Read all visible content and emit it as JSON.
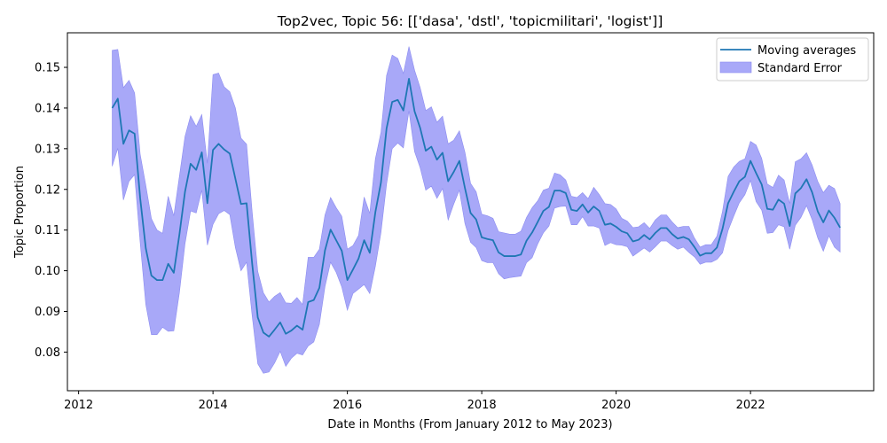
{
  "chart_data": {
    "type": "line",
    "title": "Top2vec, Topic 56: [['dasa', 'dstl', 'topicmilitari', 'logist']]",
    "xlabel": "Date in Months (From January 2012 to May 2023)",
    "ylabel": "Topic Proportion",
    "xlim": [
      "2011-11-01",
      "2023-11-01"
    ],
    "ylim": [
      0.0705,
      0.1585
    ],
    "x_ticks": [
      "2012",
      "2014",
      "2016",
      "2018",
      "2020",
      "2022"
    ],
    "y_ticks": [
      "0.08",
      "0.09",
      "0.10",
      "0.11",
      "0.12",
      "0.13",
      "0.14",
      "0.15"
    ],
    "grid": false,
    "legend_position": "top-right",
    "colors": {
      "line": "#1f77b4",
      "band": "#a8a8f8",
      "band_edge": "#8c8cf0"
    },
    "series": [
      {
        "name": "Moving averages",
        "x": [
          "2012-07",
          "2012-08",
          "2012-09",
          "2012-10",
          "2012-11",
          "2012-12",
          "2013-01",
          "2013-02",
          "2013-03",
          "2013-04",
          "2013-05",
          "2013-06",
          "2013-07",
          "2013-08",
          "2013-09",
          "2013-10",
          "2013-11",
          "2013-12",
          "2014-01",
          "2014-02",
          "2014-03",
          "2014-04",
          "2014-05",
          "2014-06",
          "2014-07",
          "2014-08",
          "2014-09",
          "2014-10",
          "2014-11",
          "2014-12",
          "2015-01",
          "2015-02",
          "2015-03",
          "2015-04",
          "2015-05",
          "2015-06",
          "2015-07",
          "2015-08",
          "2015-09",
          "2015-10",
          "2015-11",
          "2015-12",
          "2016-01",
          "2016-02",
          "2016-03",
          "2016-04",
          "2016-05",
          "2016-06",
          "2016-07",
          "2016-08",
          "2016-09",
          "2016-10",
          "2016-11",
          "2016-12",
          "2017-01",
          "2017-02",
          "2017-03",
          "2017-04",
          "2017-05",
          "2017-06",
          "2017-07",
          "2017-08",
          "2017-09",
          "2017-10",
          "2017-11",
          "2017-12",
          "2018-01",
          "2018-02",
          "2018-03",
          "2018-04",
          "2018-05",
          "2018-06",
          "2018-07",
          "2018-08",
          "2018-09",
          "2018-10",
          "2018-11",
          "2018-12",
          "2019-01",
          "2019-02",
          "2019-03",
          "2019-04",
          "2019-05",
          "2019-06",
          "2019-07",
          "2019-08",
          "2019-09",
          "2019-10",
          "2019-11",
          "2019-12",
          "2020-01",
          "2020-02",
          "2020-03",
          "2020-04",
          "2020-05",
          "2020-06",
          "2020-07",
          "2020-08",
          "2020-09",
          "2020-10",
          "2020-11",
          "2020-12",
          "2021-01",
          "2021-02",
          "2021-03",
          "2021-04",
          "2021-05",
          "2021-06",
          "2021-07",
          "2021-08",
          "2021-09",
          "2021-10",
          "2021-11",
          "2021-12",
          "2022-01",
          "2022-02",
          "2022-03",
          "2022-04",
          "2022-05",
          "2022-06",
          "2022-07",
          "2022-08",
          "2022-09",
          "2022-10",
          "2022-11",
          "2022-12",
          "2023-01",
          "2023-02",
          "2023-03",
          "2023-04",
          "2023-05"
        ],
        "values": [
          0.14,
          0.1423,
          0.1312,
          0.1345,
          0.1337,
          0.1178,
          0.1055,
          0.0988,
          0.0977,
          0.0977,
          0.1017,
          0.0995,
          0.1089,
          0.1194,
          0.1263,
          0.1248,
          0.1291,
          0.1166,
          0.1297,
          0.1312,
          0.1298,
          0.1288,
          0.1226,
          0.1164,
          0.1166,
          0.1017,
          0.0885,
          0.0848,
          0.0838,
          0.0855,
          0.0873,
          0.0845,
          0.0853,
          0.0865,
          0.0855,
          0.0923,
          0.0928,
          0.0958,
          0.105,
          0.1101,
          0.1075,
          0.1049,
          0.0977,
          0.1003,
          0.103,
          0.1075,
          0.1044,
          0.1144,
          0.1217,
          0.135,
          0.1415,
          0.142,
          0.1394,
          0.1472,
          0.1392,
          0.1351,
          0.1295,
          0.1305,
          0.1273,
          0.129,
          0.122,
          0.1243,
          0.127,
          0.1203,
          0.1142,
          0.1126,
          0.1082,
          0.1078,
          0.1075,
          0.1045,
          0.1036,
          0.1036,
          0.1036,
          0.104,
          0.1074,
          0.1094,
          0.112,
          0.1147,
          0.1157,
          0.1197,
          0.1197,
          0.1191,
          0.115,
          0.1147,
          0.1163,
          0.1143,
          0.1158,
          0.1147,
          0.1113,
          0.1116,
          0.1108,
          0.1097,
          0.1092,
          0.1072,
          0.1076,
          0.1088,
          0.1077,
          0.1093,
          0.1105,
          0.1105,
          0.109,
          0.1079,
          0.1083,
          0.1077,
          0.1058,
          0.1037,
          0.1043,
          0.1043,
          0.1057,
          0.1103,
          0.1166,
          0.1194,
          0.122,
          0.1231,
          0.127,
          0.124,
          0.1212,
          0.1152,
          0.115,
          0.1175,
          0.1165,
          0.111,
          0.119,
          0.1203,
          0.1225,
          0.1193,
          0.1146,
          0.1119,
          0.1148,
          0.113,
          0.1106
        ]
      },
      {
        "name": "Standard Error",
        "x": [
          "2012-07",
          "2012-08",
          "2012-09",
          "2012-10",
          "2012-11",
          "2012-12",
          "2013-01",
          "2013-02",
          "2013-03",
          "2013-04",
          "2013-05",
          "2013-06",
          "2013-07",
          "2013-08",
          "2013-09",
          "2013-10",
          "2013-11",
          "2013-12",
          "2014-01",
          "2014-02",
          "2014-03",
          "2014-04",
          "2014-05",
          "2014-06",
          "2014-07",
          "2014-08",
          "2014-09",
          "2014-10",
          "2014-11",
          "2014-12",
          "2015-01",
          "2015-02",
          "2015-03",
          "2015-04",
          "2015-05",
          "2015-06",
          "2015-07",
          "2015-08",
          "2015-09",
          "2015-10",
          "2015-11",
          "2015-12",
          "2016-01",
          "2016-02",
          "2016-03",
          "2016-04",
          "2016-05",
          "2016-06",
          "2016-07",
          "2016-08",
          "2016-09",
          "2016-10",
          "2016-11",
          "2016-12",
          "2017-01",
          "2017-02",
          "2017-03",
          "2017-04",
          "2017-05",
          "2017-06",
          "2017-07",
          "2017-08",
          "2017-09",
          "2017-10",
          "2017-11",
          "2017-12",
          "2018-01",
          "2018-02",
          "2018-03",
          "2018-04",
          "2018-05",
          "2018-06",
          "2018-07",
          "2018-08",
          "2018-09",
          "2018-10",
          "2018-11",
          "2018-12",
          "2019-01",
          "2019-02",
          "2019-03",
          "2019-04",
          "2019-05",
          "2019-06",
          "2019-07",
          "2019-08",
          "2019-09",
          "2019-10",
          "2019-11",
          "2019-12",
          "2020-01",
          "2020-02",
          "2020-03",
          "2020-04",
          "2020-05",
          "2020-06",
          "2020-07",
          "2020-08",
          "2020-09",
          "2020-10",
          "2020-11",
          "2020-12",
          "2021-01",
          "2021-02",
          "2021-03",
          "2021-04",
          "2021-05",
          "2021-06",
          "2021-07",
          "2021-08",
          "2021-09",
          "2021-10",
          "2021-11",
          "2021-12",
          "2022-01",
          "2022-02",
          "2022-03",
          "2022-04",
          "2022-05",
          "2022-06",
          "2022-07",
          "2022-08",
          "2022-09",
          "2022-10",
          "2022-11",
          "2022-12",
          "2023-01",
          "2023-02",
          "2023-03",
          "2023-04",
          "2023-05"
        ],
        "upper": [
          0.1542,
          0.1544,
          0.145,
          0.1468,
          0.1437,
          0.1286,
          0.121,
          0.1128,
          0.11,
          0.1092,
          0.1183,
          0.1135,
          0.1232,
          0.133,
          0.1381,
          0.1355,
          0.1384,
          0.1264,
          0.1482,
          0.1486,
          0.1452,
          0.144,
          0.14,
          0.1326,
          0.1311,
          0.1144,
          0.0998,
          0.0946,
          0.0923,
          0.0937,
          0.0946,
          0.0921,
          0.092,
          0.0934,
          0.0917,
          0.1033,
          0.1033,
          0.1053,
          0.1137,
          0.118,
          0.1155,
          0.1134,
          0.1053,
          0.1062,
          0.1087,
          0.1181,
          0.1141,
          0.1275,
          0.134,
          0.148,
          0.153,
          0.1522,
          0.1485,
          0.1551,
          0.1493,
          0.145,
          0.1394,
          0.1403,
          0.1365,
          0.138,
          0.1312,
          0.1321,
          0.1344,
          0.1291,
          0.1215,
          0.1194,
          0.1139,
          0.1135,
          0.1129,
          0.1096,
          0.1093,
          0.109,
          0.109,
          0.1097,
          0.1131,
          0.1155,
          0.1172,
          0.1198,
          0.1203,
          0.124,
          0.1236,
          0.1223,
          0.1183,
          0.118,
          0.1192,
          0.1177,
          0.1205,
          0.1187,
          0.1165,
          0.1163,
          0.1152,
          0.1129,
          0.1122,
          0.1106,
          0.1108,
          0.1118,
          0.1104,
          0.1125,
          0.1137,
          0.1137,
          0.112,
          0.1106,
          0.1109,
          0.1109,
          0.108,
          0.1058,
          0.1064,
          0.1064,
          0.1085,
          0.1146,
          0.1232,
          0.1255,
          0.1269,
          0.1275,
          0.1318,
          0.1309,
          0.1276,
          0.1213,
          0.1205,
          0.1235,
          0.1223,
          0.1165,
          0.1268,
          0.1275,
          0.129,
          0.126,
          0.122,
          0.1192,
          0.121,
          0.1202,
          0.1165
        ],
        "lower": [
          0.1257,
          0.1301,
          0.1174,
          0.122,
          0.1236,
          0.1069,
          0.0917,
          0.0843,
          0.0843,
          0.0861,
          0.0851,
          0.0852,
          0.0946,
          0.1066,
          0.1147,
          0.1142,
          0.1198,
          0.1063,
          0.1114,
          0.114,
          0.1148,
          0.1138,
          0.1057,
          0.1,
          0.1021,
          0.0889,
          0.0771,
          0.0748,
          0.0751,
          0.0773,
          0.0802,
          0.0765,
          0.0785,
          0.0797,
          0.0793,
          0.0815,
          0.0825,
          0.0868,
          0.0961,
          0.1021,
          0.0996,
          0.096,
          0.0903,
          0.0944,
          0.0955,
          0.0966,
          0.0944,
          0.1011,
          0.1094,
          0.1213,
          0.13,
          0.1314,
          0.1302,
          0.1393,
          0.1293,
          0.1253,
          0.1198,
          0.1208,
          0.1178,
          0.1202,
          0.1125,
          0.1164,
          0.1198,
          0.1116,
          0.107,
          0.1057,
          0.1025,
          0.102,
          0.102,
          0.0993,
          0.098,
          0.0983,
          0.0985,
          0.0987,
          0.102,
          0.1032,
          0.1066,
          0.1093,
          0.111,
          0.1154,
          0.1158,
          0.1159,
          0.1113,
          0.1113,
          0.1133,
          0.111,
          0.111,
          0.1105,
          0.1062,
          0.1069,
          0.1064,
          0.1063,
          0.1059,
          0.1036,
          0.1046,
          0.1056,
          0.1046,
          0.1059,
          0.1073,
          0.1073,
          0.1062,
          0.1053,
          0.1058,
          0.1045,
          0.1034,
          0.1016,
          0.1021,
          0.1021,
          0.1028,
          0.1044,
          0.1099,
          0.1134,
          0.1167,
          0.1187,
          0.1222,
          0.117,
          0.1149,
          0.1092,
          0.1094,
          0.1113,
          0.1108,
          0.1053,
          0.1112,
          0.1131,
          0.116,
          0.1126,
          0.1081,
          0.1048,
          0.1086,
          0.1058,
          0.1046
        ]
      }
    ]
  }
}
